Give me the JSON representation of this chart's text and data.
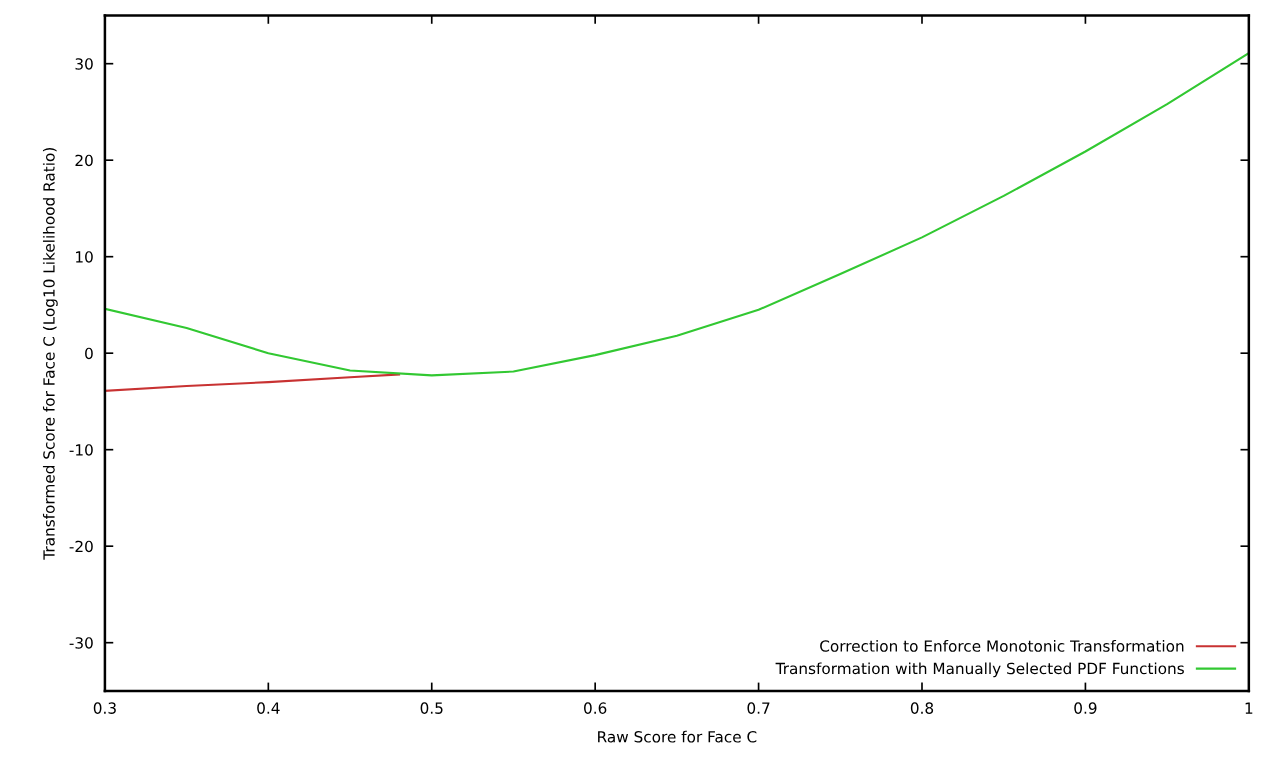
{
  "chart_data": {
    "type": "line",
    "xlabel": "Raw Score for Face C",
    "ylabel": "Transformed Score for Face C (Log10 Likelihood Ratio)",
    "xlim": [
      0.3,
      1
    ],
    "ylim": [
      -35,
      35
    ],
    "xticks": [
      0.3,
      0.4,
      0.5,
      0.6,
      0.7,
      0.8,
      0.9,
      1
    ],
    "yticks": [
      -30,
      -20,
      -10,
      0,
      10,
      20,
      30
    ],
    "grid": false,
    "legend": "bottom right",
    "marker": "none",
    "line_style": "solid",
    "series": [
      {
        "name": "Correction to Enforce Monotonic Transformation",
        "color": "#c83232",
        "x": [
          0.3,
          0.35,
          0.4,
          0.45,
          0.48
        ],
        "values": [
          -3.9,
          -3.4,
          -3.0,
          -2.5,
          -2.2
        ]
      },
      {
        "name": "Transformation with Manually Selected PDF Functions",
        "color": "#32c832",
        "x": [
          0.3,
          0.35,
          0.4,
          0.45,
          0.5,
          0.55,
          0.6,
          0.65,
          0.7,
          0.75,
          0.8,
          0.85,
          0.9,
          0.95,
          1.0
        ],
        "values": [
          4.6,
          2.6,
          0.0,
          -1.8,
          -2.3,
          -1.9,
          -0.2,
          1.8,
          4.5,
          8.2,
          12.0,
          16.3,
          20.9,
          25.8,
          31.1
        ]
      }
    ]
  }
}
